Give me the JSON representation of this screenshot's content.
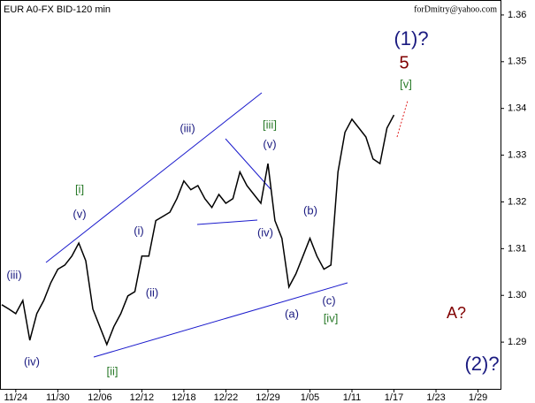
{
  "chart_data": {
    "type": "line",
    "title": "EUR A0-FX BID-120 min",
    "watermark": "forDmitry@yahoo.com",
    "categories": [
      null,
      null,
      "11/24",
      null,
      null,
      null,
      null,
      null,
      "11/30",
      null,
      null,
      null,
      null,
      null,
      "12/06",
      null,
      null,
      null,
      null,
      null,
      "12/12",
      null,
      null,
      null,
      null,
      null,
      "12/18",
      null,
      null,
      null,
      null,
      null,
      "12/22",
      null,
      null,
      null,
      null,
      null,
      "12/29",
      null,
      null,
      null,
      null,
      null,
      "1/05",
      null,
      null,
      null,
      null,
      null,
      "1/11",
      null,
      null,
      null,
      null,
      null,
      "1/17",
      null,
      null,
      null,
      null,
      null,
      "1/23",
      null,
      null,
      null,
      null,
      null,
      "1/29",
      null,
      null,
      null
    ],
    "values": [
      1.298,
      1.2971,
      1.2961,
      1.2989,
      1.2904,
      1.2961,
      1.2989,
      1.3027,
      1.3056,
      1.3065,
      1.3084,
      1.3112,
      1.3074,
      1.2971,
      1.2933,
      1.2895,
      1.2933,
      1.2961,
      1.2999,
      1.3008,
      1.3084,
      1.3084,
      1.316,
      1.3169,
      1.3178,
      1.3207,
      1.3245,
      1.3226,
      1.3235,
      1.3207,
      1.3188,
      1.3216,
      1.3197,
      1.3207,
      1.3264,
      1.3235,
      1.3216,
      1.3197,
      1.3282,
      1.316,
      1.3122,
      1.3018,
      1.3046,
      1.3084,
      1.3122,
      1.3084,
      1.3056,
      1.3065,
      1.3264,
      1.3349,
      1.3377,
      1.3358,
      1.3339,
      1.3292,
      1.3282,
      1.3358,
      1.3386,
      null,
      null,
      null,
      null,
      null,
      null,
      null,
      null,
      null,
      null,
      null,
      null,
      null,
      null,
      null
    ],
    "color": "#000000",
    "ylim": [
      1.28,
      1.3632
    ],
    "yticks": [
      1.29,
      {
        "value": 1.3,
        "label": "1.30"
      },
      1.31,
      1.32,
      1.33,
      1.34,
      1.35,
      1.36
    ],
    "annotations": [
      "(iii)",
      "(iv)",
      "[i]",
      "(v)",
      "(i)",
      "(ii)",
      "(iii)",
      "[ii]",
      "[iii]",
      "(v)",
      "(iv)",
      "(b)",
      "(a)",
      "(c)",
      "[iv]",
      "[v]",
      "5",
      "(1)?",
      "A?",
      "(2)?"
    ]
  }
}
